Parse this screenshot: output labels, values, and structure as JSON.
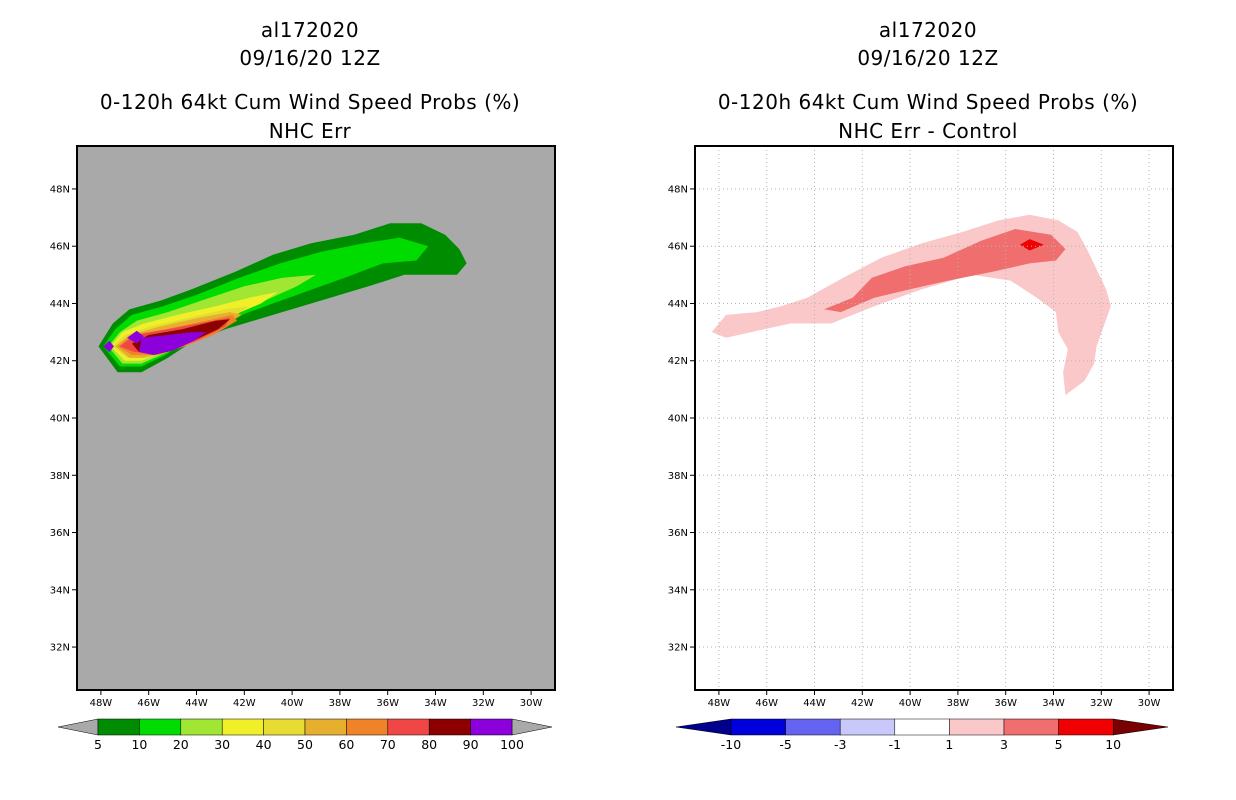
{
  "chart_data": [
    {
      "type": "heatmap",
      "id": "left",
      "title": [
        "al172020",
        "09/16/20 12Z",
        "0-120h 64kt Cum Wind Speed Probs (%)",
        "NHC Err"
      ],
      "xlabel": "",
      "ylabel": "",
      "x_ticks": [
        "48W",
        "46W",
        "44W",
        "42W",
        "40W",
        "38W",
        "36W",
        "34W",
        "32W",
        "30W"
      ],
      "y_ticks": [
        "48N",
        "46N",
        "44N",
        "42N",
        "40N",
        "38N",
        "36N",
        "34N",
        "32N"
      ],
      "xlim": [
        -49,
        -29
      ],
      "ylim": [
        30.5,
        49.5
      ],
      "grid": false,
      "background": "#a9a9a9",
      "colorbar": {
        "labels": [
          "5",
          "10",
          "20",
          "30",
          "40",
          "50",
          "60",
          "70",
          "80",
          "90",
          "100"
        ],
        "colors": [
          "#008c00",
          "#00dc00",
          "#a0e632",
          "#f0f028",
          "#e6dc32",
          "#e6af2d",
          "#f08228",
          "#f04646",
          "#8c0000",
          "#8c00dc"
        ],
        "ends": [
          "#a9a9a9",
          "#a9a9a9"
        ]
      },
      "contours": [
        {
          "level": "5-10",
          "color": "#008c00",
          "points": [
            [
              -48.1,
              42.5
            ],
            [
              -47.5,
              43.3
            ],
            [
              -46.8,
              43.8
            ],
            [
              -45.5,
              44.1
            ],
            [
              -44.2,
              44.5
            ],
            [
              -42.4,
              45.1
            ],
            [
              -40.8,
              45.7
            ],
            [
              -39.2,
              46.1
            ],
            [
              -37.4,
              46.4
            ],
            [
              -35.9,
              46.8
            ],
            [
              -34.6,
              46.8
            ],
            [
              -33.6,
              46.4
            ],
            [
              -33.0,
              45.9
            ],
            [
              -32.7,
              45.4
            ],
            [
              -33.1,
              45.0
            ],
            [
              -34.0,
              45.0
            ],
            [
              -35.3,
              45.0
            ],
            [
              -36.8,
              44.6
            ],
            [
              -38.8,
              44.1
            ],
            [
              -40.8,
              43.6
            ],
            [
              -42.8,
              43.1
            ],
            [
              -44.3,
              42.6
            ],
            [
              -45.2,
              42.1
            ],
            [
              -46.3,
              41.6
            ],
            [
              -47.3,
              41.6
            ]
          ]
        },
        {
          "level": "10-20",
          "color": "#00dc00",
          "points": [
            [
              -47.9,
              42.5
            ],
            [
              -47.4,
              43.1
            ],
            [
              -46.7,
              43.6
            ],
            [
              -45.4,
              43.9
            ],
            [
              -44.0,
              44.3
            ],
            [
              -42.2,
              44.9
            ],
            [
              -40.5,
              45.4
            ],
            [
              -38.8,
              45.8
            ],
            [
              -37.0,
              46.1
            ],
            [
              -35.5,
              46.3
            ],
            [
              -34.3,
              46.0
            ],
            [
              -34.8,
              45.5
            ],
            [
              -36.2,
              45.4
            ],
            [
              -37.8,
              44.9
            ],
            [
              -39.8,
              44.3
            ],
            [
              -41.8,
              43.7
            ],
            [
              -43.6,
              43.1
            ],
            [
              -44.6,
              42.6
            ],
            [
              -45.3,
              42.2
            ],
            [
              -46.3,
              41.8
            ],
            [
              -47.2,
              41.8
            ]
          ]
        },
        {
          "level": "20-30",
          "color": "#a0e632",
          "points": [
            [
              -47.7,
              42.5
            ],
            [
              -47.2,
              43.0
            ],
            [
              -46.5,
              43.4
            ],
            [
              -45.2,
              43.7
            ],
            [
              -43.8,
              44.1
            ],
            [
              -42.0,
              44.6
            ],
            [
              -40.4,
              44.9
            ],
            [
              -39.0,
              45.0
            ],
            [
              -39.8,
              44.6
            ],
            [
              -41.4,
              44.0
            ],
            [
              -43.2,
              43.4
            ],
            [
              -44.4,
              42.8
            ],
            [
              -45.2,
              42.3
            ],
            [
              -46.3,
              41.9
            ],
            [
              -47.1,
              41.9
            ]
          ]
        },
        {
          "level": "30-40",
          "color": "#f0f028",
          "points": [
            [
              -47.6,
              42.5
            ],
            [
              -47.1,
              43.0
            ],
            [
              -46.2,
              43.3
            ],
            [
              -44.8,
              43.6
            ],
            [
              -43.2,
              43.9
            ],
            [
              -41.8,
              44.2
            ],
            [
              -40.6,
              44.4
            ],
            [
              -41.3,
              44.0
            ],
            [
              -43.0,
              43.4
            ],
            [
              -44.3,
              42.8
            ],
            [
              -45.1,
              42.4
            ],
            [
              -46.3,
              42.0
            ],
            [
              -47.0,
              42.0
            ]
          ]
        },
        {
          "level": "40-50",
          "color": "#e6dc32",
          "points": [
            [
              -47.5,
              42.5
            ],
            [
              -47.0,
              42.9
            ],
            [
              -45.9,
              43.2
            ],
            [
              -44.3,
              43.5
            ],
            [
              -42.8,
              43.8
            ],
            [
              -41.8,
              43.9
            ],
            [
              -42.5,
              43.5
            ],
            [
              -43.8,
              42.9
            ],
            [
              -44.9,
              42.5
            ],
            [
              -46.2,
              42.1
            ],
            [
              -46.9,
              42.1
            ]
          ]
        },
        {
          "level": "50-60",
          "color": "#e6af2d",
          "points": [
            [
              -47.4,
              42.5
            ],
            [
              -46.8,
              42.9
            ],
            [
              -45.5,
              43.2
            ],
            [
              -43.9,
              43.5
            ],
            [
              -42.6,
              43.7
            ],
            [
              -42.1,
              43.6
            ],
            [
              -42.9,
              43.2
            ],
            [
              -44.2,
              42.7
            ],
            [
              -45.2,
              42.3
            ],
            [
              -46.2,
              42.1
            ],
            [
              -46.8,
              42.1
            ]
          ]
        },
        {
          "level": "60-70",
          "color": "#f08228",
          "points": [
            [
              -47.3,
              42.5
            ],
            [
              -46.7,
              42.9
            ],
            [
              -45.3,
              43.1
            ],
            [
              -43.6,
              43.4
            ],
            [
              -42.5,
              43.6
            ],
            [
              -42.3,
              43.4
            ],
            [
              -43.3,
              42.9
            ],
            [
              -44.5,
              42.5
            ],
            [
              -45.6,
              42.2
            ],
            [
              -46.7,
              42.2
            ]
          ]
        },
        {
          "level": "70-80",
          "color": "#f04646",
          "points": [
            [
              -47.2,
              42.5
            ],
            [
              -46.6,
              42.9
            ],
            [
              -45.2,
              43.1
            ],
            [
              -43.3,
              43.4
            ],
            [
              -42.6,
              43.5
            ],
            [
              -42.8,
              43.2
            ],
            [
              -44.0,
              42.7
            ],
            [
              -45.4,
              42.3
            ],
            [
              -46.6,
              42.3
            ]
          ]
        },
        {
          "level": "80-90",
          "color": "#8c0000",
          "points": [
            [
              -46.7,
              42.6
            ],
            [
              -46.0,
              42.9
            ],
            [
              -44.6,
              43.1
            ],
            [
              -43.2,
              43.4
            ],
            [
              -42.6,
              43.45
            ],
            [
              -43.1,
              43.1
            ],
            [
              -44.4,
              42.6
            ],
            [
              -45.6,
              42.35
            ],
            [
              -46.4,
              42.3
            ]
          ]
        },
        {
          "level": "90-100",
          "color": "#8c00dc",
          "points": [
            [
              -46.4,
              42.3
            ],
            [
              -46.3,
              42.8
            ],
            [
              -45.2,
              42.9
            ],
            [
              -44.2,
              43.0
            ],
            [
              -43.6,
              43.0
            ],
            [
              -44.1,
              42.7
            ],
            [
              -45.0,
              42.35
            ],
            [
              -45.8,
              42.2
            ]
          ]
        },
        {
          "level": "90-100",
          "color": "#8c00dc",
          "points": [
            [
              -47.9,
              42.5
            ],
            [
              -47.65,
              42.7
            ],
            [
              -47.45,
              42.5
            ],
            [
              -47.65,
              42.3
            ]
          ]
        },
        {
          "level": "90-100",
          "color": "#8c00dc",
          "points": [
            [
              -46.9,
              42.8
            ],
            [
              -46.5,
              43.05
            ],
            [
              -46.2,
              42.85
            ],
            [
              -46.5,
              42.6
            ]
          ]
        }
      ]
    },
    {
      "type": "heatmap",
      "id": "right",
      "title": [
        "al172020",
        "09/16/20 12Z",
        "0-120h 64kt Cum Wind Speed Probs (%)",
        "NHC Err - Control"
      ],
      "xlabel": "",
      "ylabel": "",
      "x_ticks": [
        "48W",
        "46W",
        "44W",
        "42W",
        "40W",
        "38W",
        "36W",
        "34W",
        "32W",
        "30W"
      ],
      "y_ticks": [
        "48N",
        "46N",
        "44N",
        "42N",
        "40N",
        "38N",
        "36N",
        "34N",
        "32N"
      ],
      "xlim": [
        -49,
        -29
      ],
      "ylim": [
        30.5,
        49.5
      ],
      "grid": true,
      "background": "#ffffff",
      "colorbar": {
        "labels": [
          "-10",
          "-5",
          "-3",
          "-1",
          "1",
          "3",
          "5",
          "10"
        ],
        "colors": [
          "#0000dc",
          "#6464f0",
          "#c8c8fa",
          "#ffffff",
          "#fac8c8",
          "#f06e6e",
          "#f00000"
        ],
        "ends": [
          "#00008c",
          "#780000"
        ]
      },
      "contours": [
        {
          "level": "1-3",
          "color": "#fac8c8",
          "points": [
            [
              -48.3,
              43.0
            ],
            [
              -47.7,
              43.6
            ],
            [
              -46.4,
              43.7
            ],
            [
              -45.4,
              43.9
            ],
            [
              -44.3,
              44.2
            ],
            [
              -42.8,
              44.9
            ],
            [
              -41.2,
              45.6
            ],
            [
              -39.5,
              46.1
            ],
            [
              -37.8,
              46.5
            ],
            [
              -36.3,
              46.9
            ],
            [
              -35.0,
              47.1
            ],
            [
              -33.8,
              46.9
            ],
            [
              -33.0,
              46.5
            ],
            [
              -32.6,
              45.9
            ],
            [
              -32.2,
              45.2
            ],
            [
              -31.8,
              44.5
            ],
            [
              -31.6,
              43.9
            ],
            [
              -31.9,
              43.2
            ],
            [
              -32.2,
              42.5
            ],
            [
              -32.3,
              41.9
            ],
            [
              -32.7,
              41.3
            ],
            [
              -33.5,
              40.8
            ],
            [
              -33.6,
              41.6
            ],
            [
              -33.4,
              42.4
            ],
            [
              -33.8,
              43.0
            ],
            [
              -33.9,
              43.7
            ],
            [
              -34.7,
              44.2
            ],
            [
              -35.8,
              44.8
            ],
            [
              -37.4,
              45.0
            ],
            [
              -39.5,
              44.5
            ],
            [
              -41.5,
              43.9
            ],
            [
              -43.3,
              43.3
            ],
            [
              -45.0,
              43.3
            ],
            [
              -46.1,
              43.1
            ],
            [
              -47.7,
              42.8
            ]
          ]
        },
        {
          "level": "3-5",
          "color": "#f06e6e",
          "points": [
            [
              -43.6,
              43.8
            ],
            [
              -42.4,
              44.2
            ],
            [
              -41.6,
              44.9
            ],
            [
              -40.2,
              45.3
            ],
            [
              -38.6,
              45.6
            ],
            [
              -37.0,
              46.2
            ],
            [
              -35.6,
              46.6
            ],
            [
              -34.1,
              46.4
            ],
            [
              -33.5,
              45.9
            ],
            [
              -33.9,
              45.5
            ],
            [
              -35.0,
              45.4
            ],
            [
              -36.6,
              45.1
            ],
            [
              -38.4,
              44.8
            ],
            [
              -40.0,
              44.5
            ],
            [
              -41.5,
              44.2
            ],
            [
              -42.9,
              43.7
            ]
          ]
        },
        {
          "level": "5-10",
          "color": "#f00000",
          "points": [
            [
              -35.4,
              46.05
            ],
            [
              -35.0,
              46.25
            ],
            [
              -34.4,
              46.05
            ],
            [
              -35.0,
              45.85
            ]
          ]
        }
      ]
    }
  ]
}
